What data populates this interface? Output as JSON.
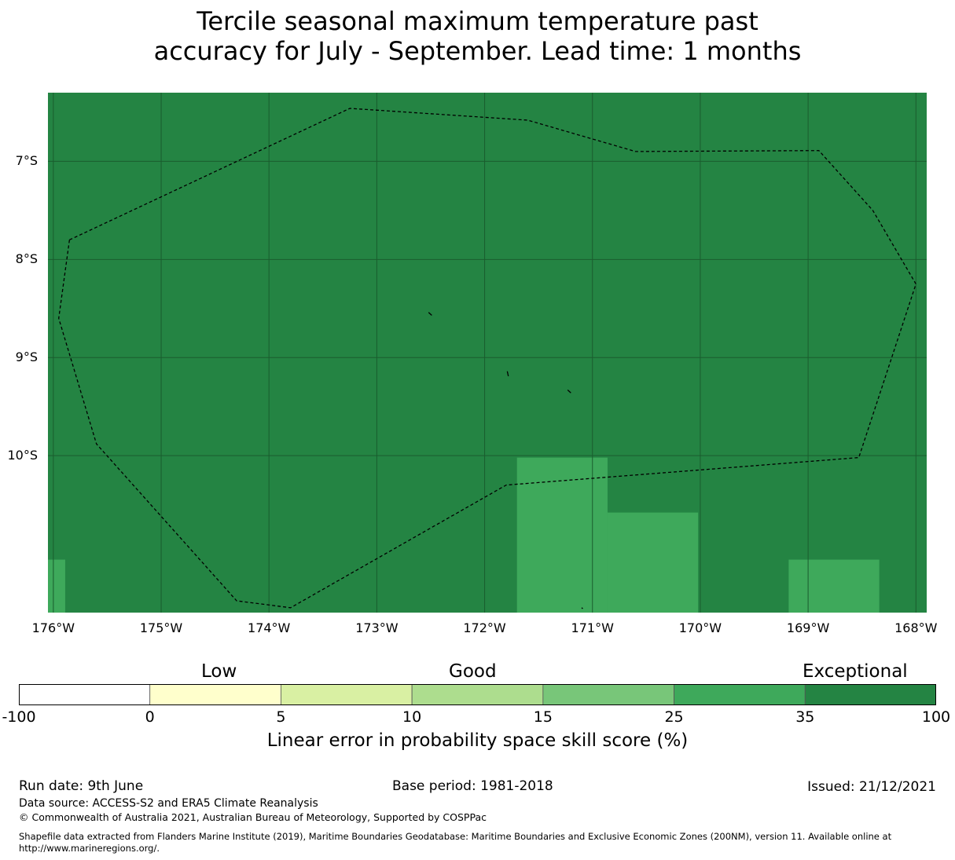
{
  "title": {
    "line1": "Tercile seasonal maximum temperature past",
    "line2": "accuracy for July - September. Lead time: 1 months"
  },
  "map": {
    "lon_range": [
      -176.05,
      -167.9
    ],
    "lat_range": [
      -11.6,
      -6.3
    ],
    "background_color": "#248443",
    "lat_ticks": [
      {
        "value": -7,
        "label": "7°S"
      },
      {
        "value": -8,
        "label": "8°S"
      },
      {
        "value": -9,
        "label": "9°S"
      },
      {
        "value": -10,
        "label": "10°S"
      }
    ],
    "lon_ticks": [
      {
        "value": -176,
        "label": "176°W"
      },
      {
        "value": -175,
        "label": "175°W"
      },
      {
        "value": -174,
        "label": "174°W"
      },
      {
        "value": -173,
        "label": "173°W"
      },
      {
        "value": -172,
        "label": "172°W"
      },
      {
        "value": -171,
        "label": "171°W"
      },
      {
        "value": -170,
        "label": "170°W"
      },
      {
        "value": -169,
        "label": "169°W"
      },
      {
        "value": -168,
        "label": "168°W"
      }
    ],
    "cells": [
      {
        "lon": [
          -176.05,
          -175.89
        ],
        "lat": [
          -11.6,
          -11.06
        ],
        "color": "#3ea95b"
      },
      {
        "lon": [
          -171.7,
          -170.86
        ],
        "lat": [
          -11.6,
          -10.02
        ],
        "color": "#3ea95b"
      },
      {
        "lon": [
          -170.86,
          -170.02
        ],
        "lat": [
          -11.6,
          -10.58
        ],
        "color": "#3ea95b"
      },
      {
        "lon": [
          -169.18,
          -168.34
        ],
        "lat": [
          -11.6,
          -11.06
        ],
        "color": "#3ea95b"
      }
    ],
    "eez_boundary": [
      [
        -175.85,
        -7.8
      ],
      [
        -173.25,
        -6.46
      ],
      [
        -171.6,
        -6.58
      ],
      [
        -170.6,
        -6.9
      ],
      [
        -168.9,
        -6.89
      ],
      [
        -168.4,
        -7.5
      ],
      [
        -168.0,
        -8.25
      ],
      [
        -168.53,
        -10.02
      ],
      [
        -171.8,
        -10.3
      ],
      [
        -173.8,
        -11.55
      ],
      [
        -174.3,
        -11.48
      ],
      [
        -175.6,
        -9.88
      ],
      [
        -175.95,
        -8.6
      ],
      [
        -175.85,
        -7.8
      ]
    ],
    "islands": [
      [
        [
          -172.52,
          -8.54
        ],
        [
          -172.49,
          -8.57
        ]
      ],
      [
        [
          -171.79,
          -9.14
        ],
        [
          -171.78,
          -9.19
        ]
      ],
      [
        [
          -171.23,
          -9.33
        ],
        [
          -171.2,
          -9.36
        ]
      ],
      [
        [
          -171.1,
          -11.55
        ],
        [
          -171.09,
          -11.56
        ]
      ]
    ]
  },
  "legend": {
    "categories": {
      "low": "Low",
      "good": "Good",
      "exceptional": "Exceptional"
    },
    "ticks": [
      "-100",
      "0",
      "5",
      "10",
      "15",
      "25",
      "35",
      "100"
    ],
    "colors": [
      "#ffffff",
      "#ffffcc",
      "#d9f0a3",
      "#addd8e",
      "#78c679",
      "#3ea95b",
      "#248443"
    ],
    "label": "Linear error in probability space skill score (%)"
  },
  "footer": {
    "run_date": "Run date: 9th June",
    "base_period": "Base period: 1981-2018",
    "issued": "Issued: 21/12/2021",
    "data_source": "Data source: ACCESS-S2 and ERA5 Climate Reanalysis",
    "copyright": "© Commonwealth of Australia 2021, Australian Bureau of Meteorology, Supported by COSPPac",
    "shapefile_line1": "Shapefile data extracted from Flanders Marine Institute (2019), Maritime Boundaries Geodatabase: Maritime Boundaries and Exclusive Economic Zones (200NM), version 11. Available online at",
    "shapefile_line2": "http://www.marineregions.org/."
  }
}
